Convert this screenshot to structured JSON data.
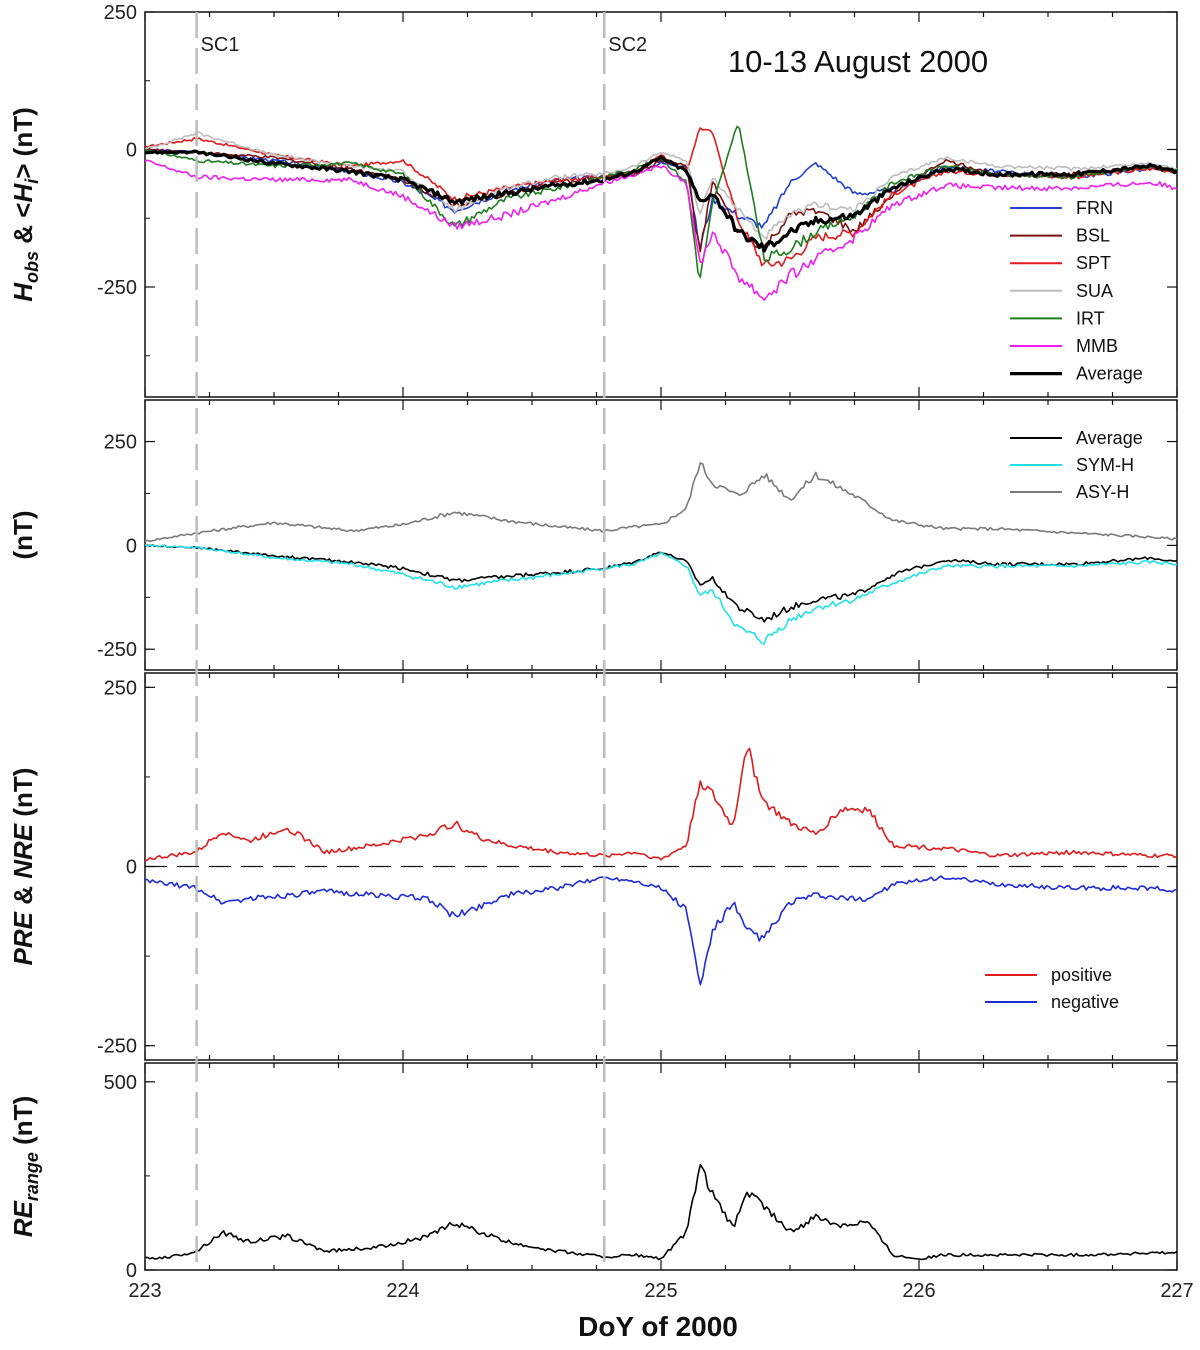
{
  "figure": {
    "x_label": "DoY of 2000",
    "x_ticks": [
      "223",
      "224",
      "225",
      "226",
      "227"
    ],
    "events": [
      {
        "label": "SC1",
        "x": 223.2
      },
      {
        "label": "SC2",
        "x": 224.78
      }
    ]
  },
  "chart_data": [
    {
      "type": "line",
      "title": "10-13 August 2000",
      "ylabel": "H_obs & <H_i> (nT)",
      "ylabel_parts": {
        "main": "H",
        "sub1": "obs",
        "mid": " & <",
        "italic": "H",
        "sub2": "i",
        "end": "> (nT)"
      },
      "ylim": [
        -450,
        250
      ],
      "y_ticks": [
        "250",
        "0",
        "-250"
      ],
      "legend_position": "bottom-right",
      "series": [
        {
          "name": "FRN",
          "color": "#1f3fd0",
          "x": [
            223,
            223.2,
            223.5,
            223.8,
            224.0,
            224.2,
            224.4,
            224.6,
            224.78,
            224.9,
            225.0,
            225.1,
            225.15,
            225.2,
            225.3,
            225.4,
            225.5,
            225.6,
            225.75,
            225.9,
            226.1,
            226.3,
            226.6,
            226.9,
            227
          ],
          "y": [
            0,
            -5,
            -20,
            -40,
            -60,
            -110,
            -75,
            -55,
            -50,
            -40,
            -25,
            -30,
            -180,
            -90,
            -120,
            -140,
            -60,
            -25,
            -80,
            -75,
            -30,
            -40,
            -50,
            -35,
            -40
          ]
        },
        {
          "name": "BSL",
          "color": "#7a1010",
          "x": [
            223,
            223.2,
            223.5,
            223.8,
            224.0,
            224.2,
            224.4,
            224.6,
            224.78,
            224.9,
            225.0,
            225.1,
            225.15,
            225.2,
            225.3,
            225.4,
            225.5,
            225.6,
            225.75,
            225.9,
            226.1,
            226.3,
            226.6,
            226.9,
            227
          ],
          "y": [
            0,
            -5,
            -15,
            -35,
            -55,
            -100,
            -80,
            -60,
            -50,
            -45,
            -20,
            -30,
            -190,
            -60,
            -150,
            -180,
            -120,
            -110,
            -150,
            -80,
            -20,
            -45,
            -45,
            -30,
            -40
          ]
        },
        {
          "name": "SPT",
          "color": "#e01b1b",
          "x": [
            223,
            223.2,
            223.5,
            223.8,
            224.0,
            224.2,
            224.4,
            224.6,
            224.78,
            224.9,
            225.0,
            225.1,
            225.15,
            225.2,
            225.3,
            225.4,
            225.5,
            225.6,
            225.75,
            225.9,
            226.1,
            226.3,
            226.6,
            226.9,
            227
          ],
          "y": [
            5,
            20,
            -10,
            -30,
            -20,
            -90,
            -70,
            -55,
            -50,
            -40,
            -10,
            -40,
            40,
            30,
            -130,
            -210,
            -200,
            -160,
            -150,
            -80,
            -40,
            -45,
            -50,
            -35,
            -40
          ]
        },
        {
          "name": "SUA",
          "color": "#bdbdbd",
          "x": [
            223,
            223.2,
            223.5,
            223.8,
            224.0,
            224.2,
            224.4,
            224.6,
            224.78,
            224.9,
            225.0,
            225.1,
            225.15,
            225.2,
            225.3,
            225.4,
            225.5,
            225.6,
            225.75,
            225.9,
            226.1,
            226.3,
            226.6,
            226.9,
            227
          ],
          "y": [
            0,
            30,
            -10,
            -30,
            -40,
            -110,
            -70,
            -50,
            -45,
            -30,
            -5,
            -20,
            -120,
            -50,
            -110,
            -160,
            -120,
            -100,
            -110,
            -50,
            -15,
            -30,
            -35,
            -25,
            -35
          ]
        },
        {
          "name": "IRT",
          "color": "#1e7d1e",
          "x": [
            223,
            223.2,
            223.5,
            223.8,
            224.0,
            224.2,
            224.4,
            224.6,
            224.78,
            224.9,
            225.0,
            225.1,
            225.15,
            225.2,
            225.3,
            225.4,
            225.5,
            225.6,
            225.75,
            225.9,
            226.1,
            226.3,
            226.6,
            226.9,
            227
          ],
          "y": [
            0,
            -20,
            -30,
            -25,
            -45,
            -140,
            -90,
            -70,
            -50,
            -35,
            -15,
            -60,
            -240,
            -100,
            50,
            -200,
            -180,
            -150,
            -120,
            -60,
            -30,
            -45,
            -50,
            -30,
            -40
          ]
        },
        {
          "name": "MMB",
          "color": "#f01cf0",
          "x": [
            223,
            223.2,
            223.5,
            223.8,
            224.0,
            224.2,
            224.4,
            224.6,
            224.78,
            224.9,
            225.0,
            225.1,
            225.15,
            225.2,
            225.3,
            225.4,
            225.5,
            225.6,
            225.75,
            225.9,
            226.1,
            226.3,
            226.6,
            226.9,
            227
          ],
          "y": [
            -20,
            -50,
            -55,
            -55,
            -85,
            -140,
            -120,
            -90,
            -60,
            -45,
            -30,
            -60,
            -210,
            -150,
            -230,
            -270,
            -230,
            -200,
            -160,
            -100,
            -65,
            -70,
            -70,
            -60,
            -70
          ]
        },
        {
          "name": "Average",
          "color": "#000000",
          "bold": true,
          "x": [
            223,
            223.2,
            223.5,
            223.8,
            224.0,
            224.2,
            224.4,
            224.6,
            224.78,
            224.9,
            225.0,
            225.1,
            225.15,
            225.2,
            225.3,
            225.4,
            225.5,
            225.6,
            225.75,
            225.9,
            226.1,
            226.3,
            226.6,
            226.9,
            227
          ],
          "y": [
            -5,
            -5,
            -25,
            -40,
            -55,
            -95,
            -80,
            -65,
            -55,
            -40,
            -15,
            -40,
            -95,
            -80,
            -150,
            -180,
            -150,
            -130,
            -120,
            -70,
            -35,
            -45,
            -45,
            -30,
            -40
          ]
        }
      ]
    },
    {
      "type": "line",
      "ylabel": "(nT)",
      "ylim": [
        -300,
        350
      ],
      "y_ticks": [
        "250",
        "0",
        "-250"
      ],
      "legend_position": "top-right",
      "series": [
        {
          "name": "Average",
          "color": "#000000",
          "x": [
            223,
            223.2,
            223.5,
            223.8,
            224.0,
            224.2,
            224.4,
            224.6,
            224.78,
            224.9,
            225.0,
            225.1,
            225.15,
            225.2,
            225.3,
            225.4,
            225.5,
            225.6,
            225.75,
            225.9,
            226.1,
            226.3,
            226.6,
            226.9,
            227
          ],
          "y": [
            0,
            -5,
            -25,
            -40,
            -55,
            -85,
            -75,
            -65,
            -55,
            -40,
            -15,
            -40,
            -95,
            -80,
            -150,
            -180,
            -150,
            -130,
            -120,
            -70,
            -35,
            -45,
            -45,
            -30,
            -40
          ]
        },
        {
          "name": "SYM-H",
          "color": "#22e0ea",
          "x": [
            223,
            223.2,
            223.5,
            223.8,
            224.0,
            224.2,
            224.4,
            224.6,
            224.78,
            224.9,
            225.0,
            225.1,
            225.15,
            225.2,
            225.3,
            225.4,
            225.5,
            225.6,
            225.75,
            225.9,
            226.1,
            226.3,
            226.6,
            226.9,
            227
          ],
          "y": [
            0,
            -5,
            -30,
            -45,
            -70,
            -100,
            -85,
            -70,
            -55,
            -45,
            -20,
            -50,
            -120,
            -110,
            -200,
            -230,
            -180,
            -150,
            -130,
            -90,
            -50,
            -50,
            -50,
            -40,
            -45
          ]
        },
        {
          "name": "ASY-H",
          "color": "#7a7a7a",
          "x": [
            223,
            223.2,
            223.5,
            223.8,
            224.0,
            224.2,
            224.4,
            224.6,
            224.78,
            224.9,
            225.0,
            225.1,
            225.15,
            225.2,
            225.3,
            225.4,
            225.5,
            225.6,
            225.75,
            225.9,
            226.1,
            226.3,
            226.6,
            226.9,
            227
          ],
          "y": [
            10,
            30,
            55,
            35,
            50,
            80,
            60,
            45,
            35,
            45,
            50,
            90,
            200,
            150,
            120,
            170,
            110,
            170,
            120,
            60,
            40,
            40,
            30,
            20,
            15
          ]
        }
      ]
    },
    {
      "type": "line",
      "ylabel": "PRE & NRE (nT)",
      "ylabel_parts": {
        "a": "PRE",
        "b": " & ",
        "c": "NRE",
        "d": " (nT)"
      },
      "ylim": [
        -270,
        270
      ],
      "y_ticks": [
        "250",
        "0",
        "-250"
      ],
      "legend_position": "bottom-right",
      "series": [
        {
          "name": "positive",
          "color": "#e01b1b",
          "x": [
            223,
            223.1,
            223.2,
            223.3,
            223.4,
            223.55,
            223.7,
            223.9,
            224.1,
            224.2,
            224.3,
            224.4,
            224.6,
            224.78,
            224.9,
            225.0,
            225.1,
            225.15,
            225.2,
            225.28,
            225.33,
            225.4,
            225.5,
            225.6,
            225.7,
            225.8,
            225.9,
            226.1,
            226.3,
            226.6,
            226.9,
            227
          ],
          "y": [
            10,
            15,
            20,
            50,
            35,
            55,
            20,
            30,
            45,
            60,
            40,
            30,
            20,
            15,
            20,
            10,
            30,
            120,
            100,
            55,
            170,
            90,
            60,
            45,
            80,
            80,
            30,
            25,
            15,
            20,
            15,
            15
          ]
        },
        {
          "name": "negative",
          "color": "#1f2bd6",
          "x": [
            223,
            223.1,
            223.2,
            223.3,
            223.4,
            223.55,
            223.7,
            223.9,
            224.1,
            224.2,
            224.3,
            224.4,
            224.6,
            224.78,
            224.9,
            225.0,
            225.1,
            225.15,
            225.2,
            225.28,
            225.33,
            225.4,
            225.5,
            225.6,
            225.7,
            225.8,
            225.9,
            226.1,
            226.3,
            226.6,
            226.9,
            227
          ],
          "y": [
            -20,
            -25,
            -30,
            -50,
            -45,
            -40,
            -35,
            -40,
            -45,
            -70,
            -55,
            -40,
            -30,
            -15,
            -20,
            -30,
            -60,
            -170,
            -90,
            -50,
            -90,
            -100,
            -50,
            -40,
            -45,
            -45,
            -25,
            -15,
            -25,
            -30,
            -30,
            -35
          ]
        }
      ]
    },
    {
      "type": "line",
      "ylabel": "RE_range (nT)",
      "ylabel_parts": {
        "main": "RE",
        "sub": "range",
        "end": " (nT)"
      },
      "ylim": [
        0,
        550
      ],
      "y_ticks": [
        "500",
        "0"
      ],
      "series": [
        {
          "name": "",
          "color": "#000000",
          "x": [
            223,
            223.1,
            223.2,
            223.3,
            223.4,
            223.55,
            223.7,
            223.9,
            224.1,
            224.2,
            224.3,
            224.4,
            224.6,
            224.78,
            224.9,
            225.0,
            225.1,
            225.15,
            225.2,
            225.28,
            225.33,
            225.4,
            225.5,
            225.6,
            225.7,
            225.8,
            225.9,
            226.0,
            226.1,
            226.3,
            226.6,
            226.9,
            227
          ],
          "y": [
            30,
            35,
            50,
            100,
            75,
            90,
            50,
            60,
            90,
            125,
            100,
            75,
            50,
            35,
            40,
            30,
            100,
            280,
            200,
            110,
            210,
            170,
            100,
            140,
            120,
            130,
            40,
            30,
            40,
            40,
            40,
            45,
            45
          ]
        }
      ]
    }
  ]
}
